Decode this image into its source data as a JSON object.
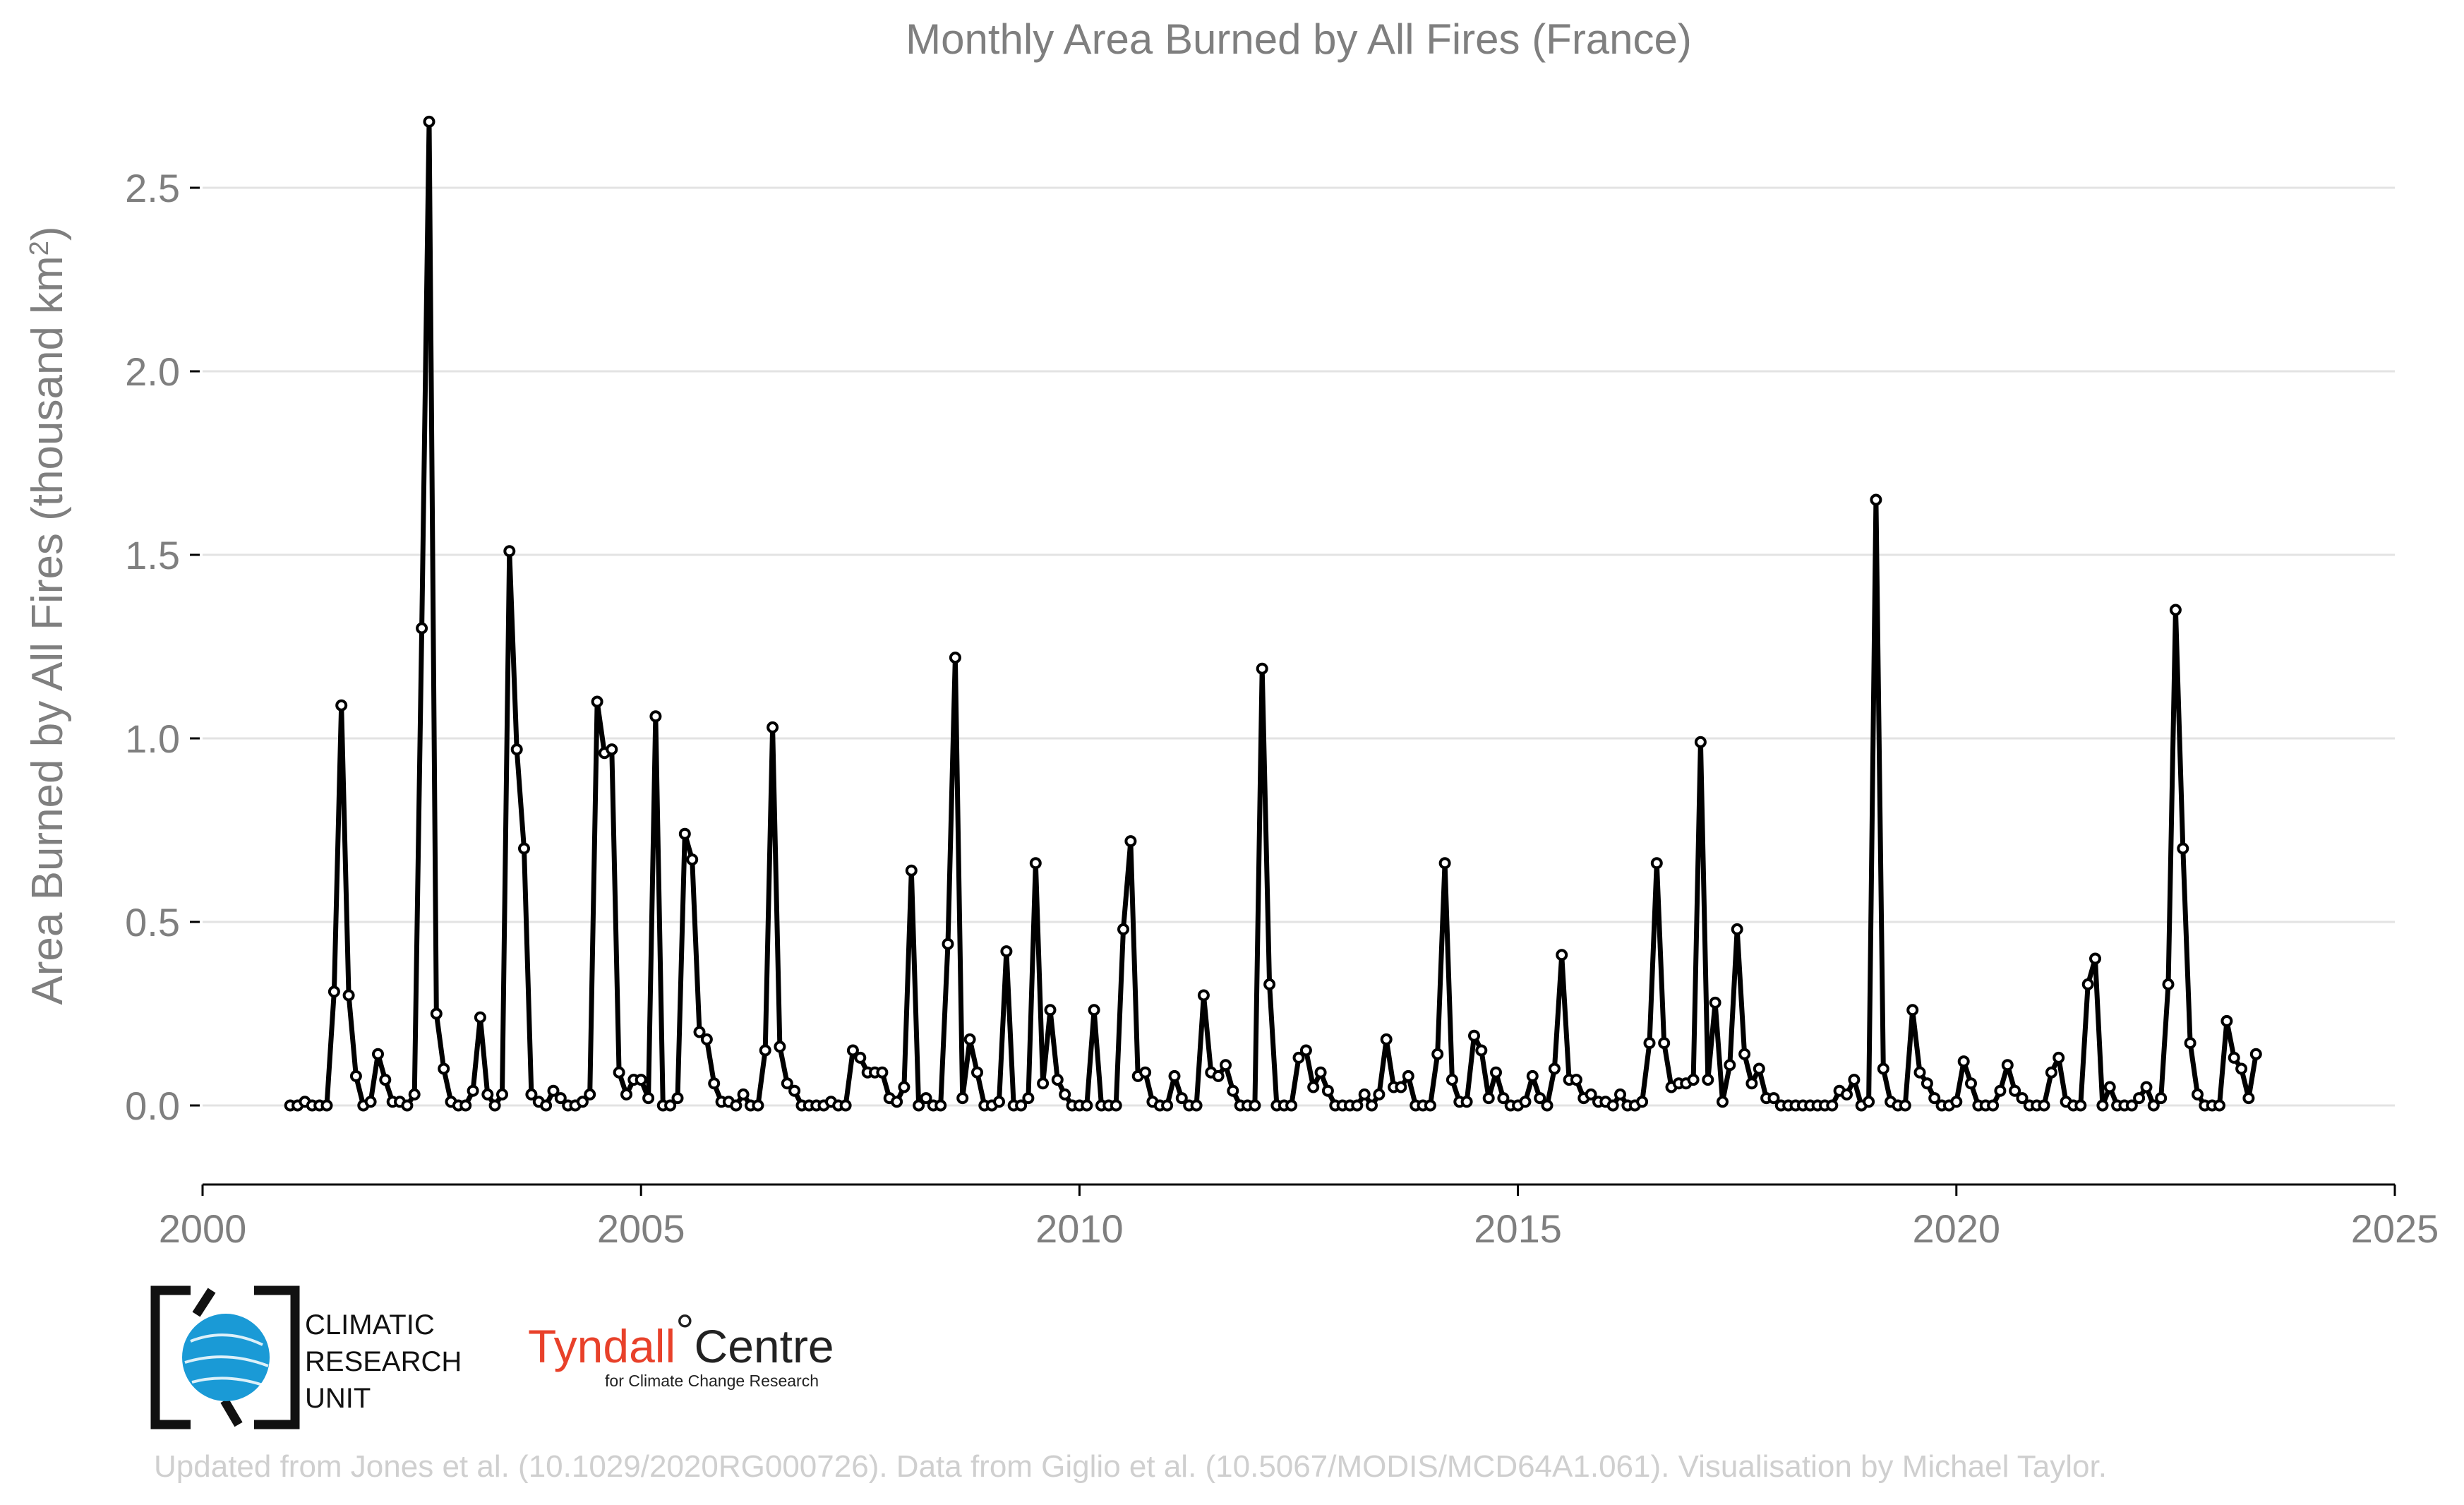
{
  "chart_data": {
    "type": "line",
    "title": "Monthly Area Burned by All Fires (France)",
    "ylabel": "Area Burned by All Fires (thousand km",
    "ylabel_sup": "2",
    "ylabel_end": ")",
    "xlabel": "",
    "xlim": [
      2000,
      2025
    ],
    "ylim": [
      -0.2,
      2.75
    ],
    "x_ticks": [
      2000,
      2005,
      2010,
      2015,
      2020,
      2025
    ],
    "x_tick_labels": [
      "2000",
      "2005",
      "2010",
      "2015",
      "2020",
      "2025"
    ],
    "y_ticks": [
      0,
      0.5,
      1,
      1.5,
      2,
      2.5
    ],
    "y_tick_labels": [
      "0.0",
      "0.5",
      "1.0",
      "1.5",
      "2.0",
      "2.5"
    ],
    "grid": "horizontal",
    "legend": "none",
    "x_start": "2001-01",
    "x_step": "1 month",
    "series": [
      {
        "color": "#000000",
        "values": [
          0,
          0,
          0.01,
          0,
          0,
          0,
          0.31,
          1.09,
          0.3,
          0.08,
          0,
          0.01,
          0.14,
          0.07,
          0.01,
          0.01,
          0,
          0.03,
          1.3,
          2.68,
          0.25,
          0.1,
          0.01,
          0,
          0,
          0.04,
          0.24,
          0.03,
          0,
          0.03,
          1.51,
          0.97,
          0.7,
          0.03,
          0.01,
          0,
          0.04,
          0.02,
          0,
          0,
          0.01,
          0.03,
          1.1,
          0.96,
          0.97,
          0.09,
          0.03,
          0.07,
          0.07,
          0.02,
          1.06,
          0,
          0,
          0.02,
          0.74,
          0.67,
          0.2,
          0.18,
          0.06,
          0.01,
          0.01,
          0,
          0.03,
          0,
          0,
          0.15,
          1.03,
          0.16,
          0.06,
          0.04,
          0,
          0,
          0,
          0,
          0.01,
          0,
          0,
          0.15,
          0.13,
          0.09,
          0.09,
          0.09,
          0.02,
          0.01,
          0.05,
          0.64,
          0,
          0.02,
          0,
          0,
          0.44,
          1.22,
          0.02,
          0.18,
          0.09,
          0,
          0,
          0.01,
          0.42,
          0,
          0,
          0.02,
          0.66,
          0.06,
          0.26,
          0.07,
          0.03,
          0,
          0,
          0,
          0.26,
          0,
          0,
          0,
          0.48,
          0.72,
          0.08,
          0.09,
          0.01,
          0,
          0,
          0.08,
          0.02,
          0,
          0,
          0.3,
          0.09,
          0.08,
          0.11,
          0.04,
          0,
          0,
          0,
          1.19,
          0.33,
          0,
          0,
          0,
          0.13,
          0.15,
          0.05,
          0.09,
          0.04,
          0,
          0,
          0,
          0,
          0.03,
          0,
          0.03,
          0.18,
          0.05,
          0.05,
          0.08,
          0,
          0,
          0,
          0.14,
          0.66,
          0.07,
          0.01,
          0.01,
          0.19,
          0.15,
          0.02,
          0.09,
          0.02,
          0,
          0,
          0.01,
          0.08,
          0.02,
          0,
          0.1,
          0.41,
          0.07,
          0.07,
          0.02,
          0.03,
          0.01,
          0.01,
          0,
          0.03,
          0,
          0,
          0.01,
          0.17,
          0.66,
          0.17,
          0.05,
          0.06,
          0.06,
          0.07,
          0.99,
          0.07,
          0.28,
          0.01,
          0.11,
          0.48,
          0.14,
          0.06,
          0.1,
          0.02,
          0.02,
          0,
          0,
          0,
          0,
          0,
          0,
          0,
          0,
          0.04,
          0.03,
          0.07,
          0,
          0.01,
          1.65,
          0.1,
          0.01,
          0,
          0,
          0.26,
          0.09,
          0.06,
          0.02,
          0,
          0,
          0.01,
          0.12,
          0.06,
          0,
          0,
          0,
          0.04,
          0.11,
          0.04,
          0.02,
          0,
          0,
          0,
          0.09,
          0.13,
          0.01,
          0,
          0,
          0.33,
          0.4,
          0,
          0.05,
          0,
          0,
          0,
          0.02,
          0.05,
          0,
          0.02,
          0.33,
          1.35,
          0.7,
          0.17,
          0.03,
          0,
          0,
          0,
          0.23,
          0.13,
          0.1,
          0.02,
          0.14
        ]
      }
    ]
  },
  "logos": {
    "cru_lines": [
      "CLIMATIC",
      "RESEARCH",
      "UNIT"
    ],
    "tyndall_name_red": "Tyndall",
    "tyndall_degree": "°",
    "tyndall_name_dark": "Centre",
    "tyndall_sub": "for Climate Change Research"
  },
  "footer": "Updated from Jones et al. (10.1029/2020RG000726). Data from Giglio et al. (10.5067/MODIS/MCD64A1.061). Visualisation by Michael Taylor.",
  "colors": {
    "line": "#000000",
    "gridline": "#e3e3e3",
    "text": "#7f7f7f",
    "cru_blue": "#1a9ad6",
    "tyndall_red": "#e8412a",
    "footer": "#cfcfcf"
  }
}
